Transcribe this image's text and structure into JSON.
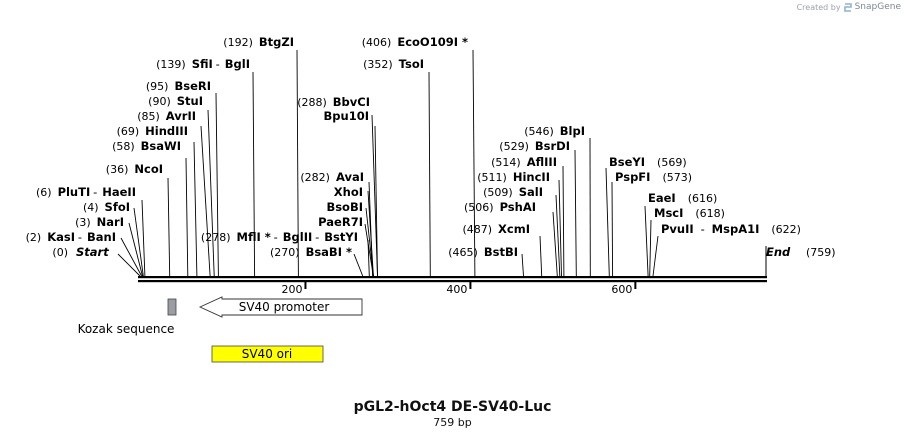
{
  "watermark": {
    "prefix": "Created by",
    "brand": "SnapGene",
    "icon": "snapgene-logo-icon"
  },
  "title": "pGL2-hOct4 DE-SV40-Luc",
  "length_label": "759 bp",
  "sequence_length": 759,
  "ticks": [
    {
      "position": 200,
      "label": "200"
    },
    {
      "position": 400,
      "label": "400"
    },
    {
      "position": 600,
      "label": "600"
    }
  ],
  "termini": [
    {
      "name": "Start",
      "pos_label": "(0)",
      "position": 0,
      "side": "left"
    },
    {
      "name": "End",
      "pos_label": "(759)",
      "position": 759,
      "side": "right"
    }
  ],
  "site_rows": [
    {
      "pos_label": "(2)",
      "names": [
        "KasI",
        "BanI"
      ],
      "position": 2
    },
    {
      "pos_label": "(3)",
      "names": [
        "NarI"
      ],
      "position": 3
    },
    {
      "pos_label": "(4)",
      "names": [
        "SfoI"
      ],
      "position": 4
    },
    {
      "pos_label": "(6)",
      "names": [
        "PluTI",
        "HaeII"
      ],
      "position": 6
    },
    {
      "pos_label": "(36)",
      "names": [
        "NcoI"
      ],
      "position": 36
    },
    {
      "pos_label": "(58)",
      "names": [
        "BsaWI"
      ],
      "position": 58
    },
    {
      "pos_label": "(69)",
      "names": [
        "HindIII"
      ],
      "position": 69
    },
    {
      "pos_label": "(85)",
      "names": [
        "AvrII"
      ],
      "position": 85
    },
    {
      "pos_label": "(90)",
      "names": [
        "StuI"
      ],
      "position": 90
    },
    {
      "pos_label": "(95)",
      "names": [
        "BseRI"
      ],
      "position": 95
    },
    {
      "pos_label": "(139)",
      "names": [
        "SfiI",
        "BglI"
      ],
      "position": 139
    },
    {
      "pos_label": "(192)",
      "names": [
        "BtgZI"
      ],
      "position": 192
    },
    {
      "pos_label": "(278)",
      "names": [
        "MflI *",
        "BglII",
        "BstYI"
      ],
      "position": 278
    },
    {
      "pos_label": "(270)",
      "names": [
        "BsaBI *"
      ],
      "position": 270
    },
    {
      "pos_label": "",
      "names": [
        "PaeR7I"
      ],
      "position": 283
    },
    {
      "pos_label": "",
      "names": [
        "BsoBI"
      ],
      "position": 283
    },
    {
      "pos_label": "",
      "names": [
        "XhoI"
      ],
      "position": 283
    },
    {
      "pos_label": "(282)",
      "names": [
        "AvaI"
      ],
      "position": 282
    },
    {
      "pos_label": "",
      "names": [
        "Bpu10I"
      ],
      "position": 288
    },
    {
      "pos_label": "(288)",
      "names": [
        "BbvCI"
      ],
      "position": 288
    },
    {
      "pos_label": "(352)",
      "names": [
        "TsoI"
      ],
      "position": 352
    },
    {
      "pos_label": "(406)",
      "names": [
        "EcoO109I *"
      ],
      "position": 406
    },
    {
      "pos_label": "(465)",
      "names": [
        "BstBI"
      ],
      "position": 465
    },
    {
      "pos_label": "(487)",
      "names": [
        "XcmI"
      ],
      "position": 487
    },
    {
      "pos_label": "(506)",
      "names": [
        "PshAI"
      ],
      "position": 506
    },
    {
      "pos_label": "(509)",
      "names": [
        "SalI"
      ],
      "position": 509
    },
    {
      "pos_label": "(511)",
      "names": [
        "HincII"
      ],
      "position": 511
    },
    {
      "pos_label": "(514)",
      "names": [
        "AflIII"
      ],
      "position": 514
    },
    {
      "pos_label": "(529)",
      "names": [
        "BsrDI"
      ],
      "position": 529
    },
    {
      "pos_label": "(546)",
      "names": [
        "BlpI"
      ],
      "position": 546
    },
    {
      "pos_label": "(569)",
      "names": [
        "BseYI"
      ],
      "position": 569
    },
    {
      "pos_label": "(573)",
      "names": [
        "PspFI"
      ],
      "position": 573
    },
    {
      "pos_label": "(616)",
      "names": [
        "EaeI"
      ],
      "position": 616
    },
    {
      "pos_label": "(618)",
      "names": [
        "MscI"
      ],
      "position": 618
    },
    {
      "pos_label": "(622)",
      "names": [
        "PvuII",
        "MspA1I"
      ],
      "position": 622
    }
  ],
  "features": [
    {
      "name": "Kozak sequence",
      "type": "box",
      "color": "#9a9ea3"
    },
    {
      "name": "SV40 promoter",
      "type": "arrow-left",
      "color": "#ffffff"
    },
    {
      "name": "SV40 ori",
      "type": "box",
      "color": "#ffff00"
    }
  ]
}
